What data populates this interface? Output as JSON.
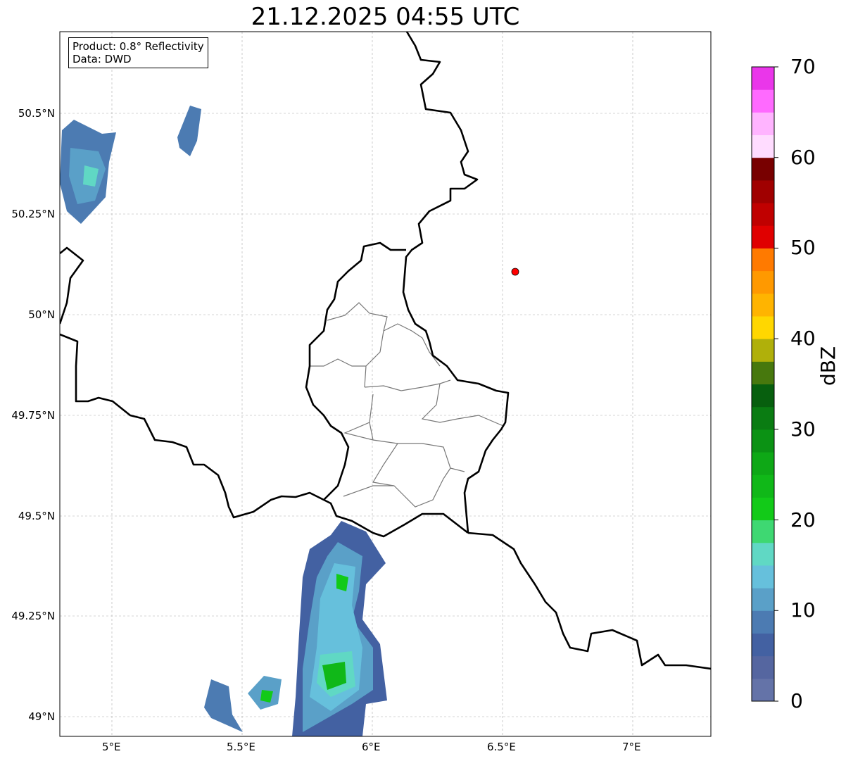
{
  "title": "21.12.2025 04:55 UTC",
  "info": {
    "product": "Product: 0.8° Reflectivity",
    "data": "Data: DWD"
  },
  "axes": {
    "lon_ticks": [
      "5°E",
      "5.5°E",
      "6°E",
      "6.5°E",
      "7°E"
    ],
    "lat_ticks": [
      "50.5°N",
      "50.25°N",
      "50°N",
      "49.75°N",
      "49.5°N",
      "49.25°N",
      "49°N"
    ]
  },
  "colorbar": {
    "label": "dBZ",
    "ticks": [
      "0",
      "10",
      "20",
      "30",
      "40",
      "50",
      "60",
      "70"
    ],
    "range": [
      0,
      70
    ],
    "colors": [
      "#6473a8",
      "#5566a0",
      "#4361a2",
      "#4c7bb2",
      "#5aa0c8",
      "#66c0dc",
      "#60d8c4",
      "#3ed872",
      "#12ca18",
      "#10b818",
      "#0ea816",
      "#0b9214",
      "#0a7c12",
      "#075f0e",
      "#47780d",
      "#b0b00a",
      "#ffd700",
      "#ffb400",
      "#ff9900",
      "#ff7a00",
      "#e00000",
      "#c00000",
      "#a00000",
      "#780000",
      "#ffdcff",
      "#ffb4ff",
      "#ff6aff",
      "#ea36ea"
    ]
  },
  "marker": {
    "color": "#ff0000"
  }
}
